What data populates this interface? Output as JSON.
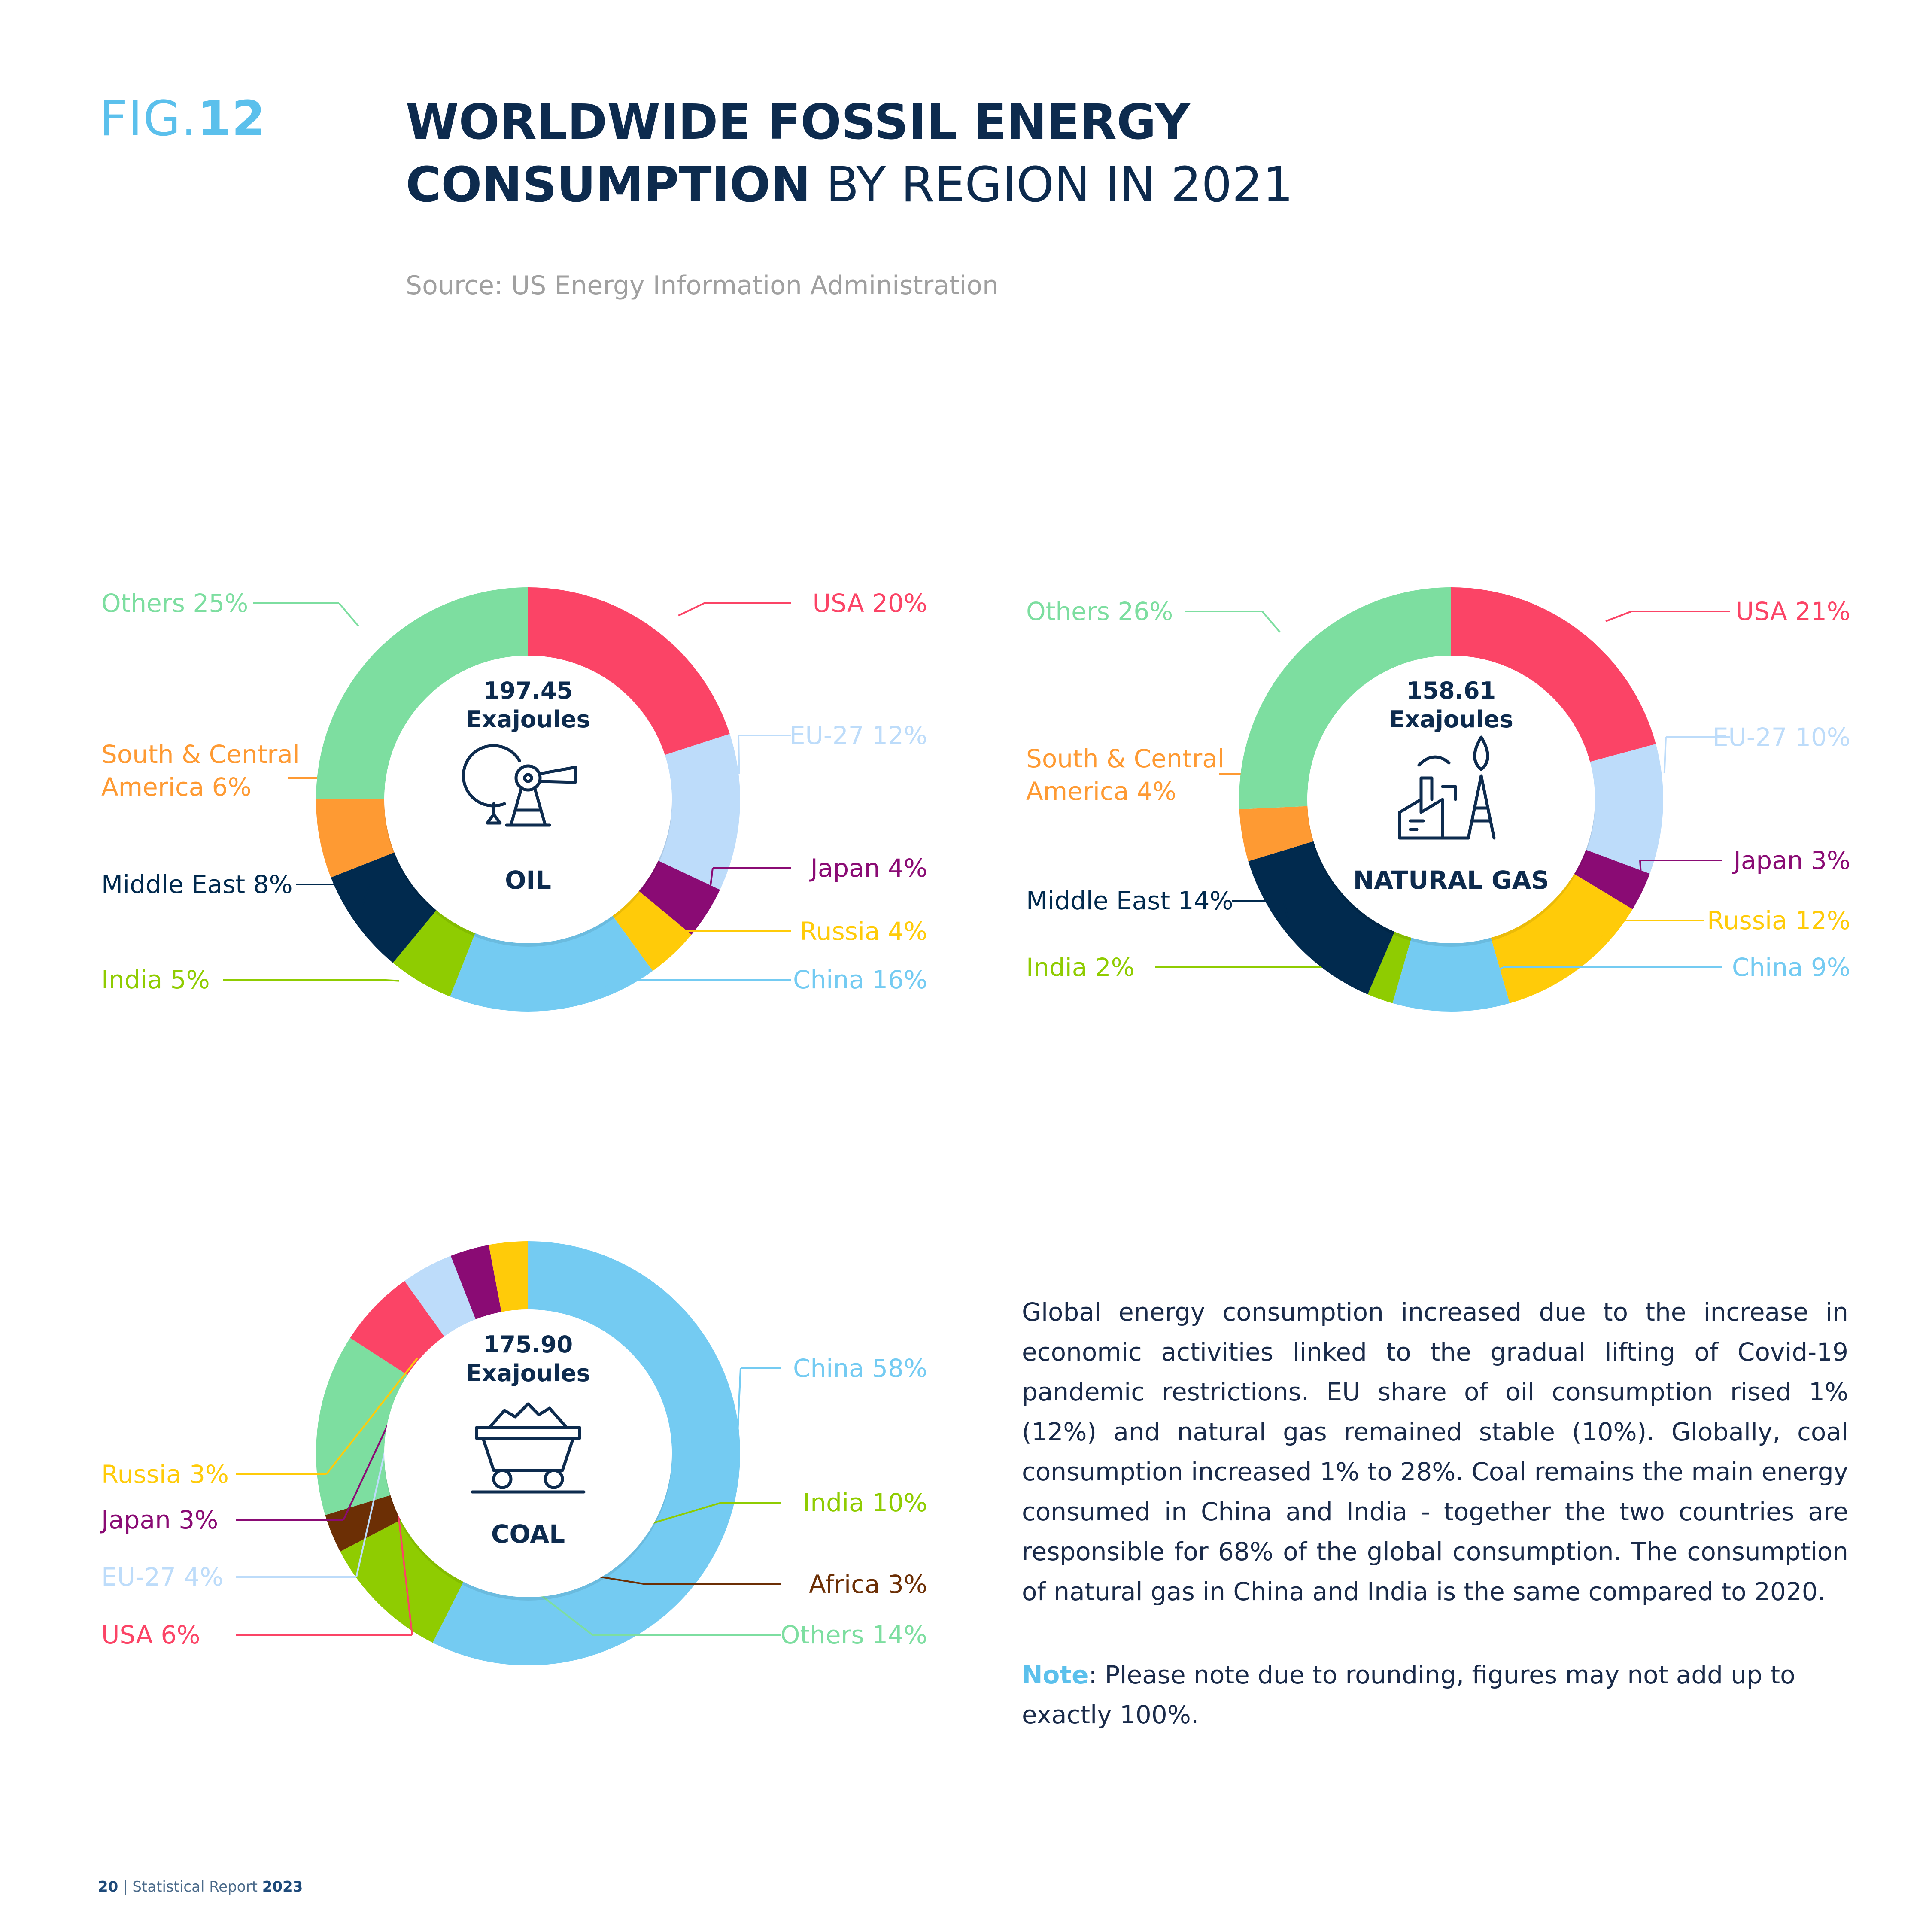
{
  "header": {
    "fig_prefix": "FIG.",
    "fig_number": "12",
    "title_bold_line1": "WORLDWIDE FOSSIL ENERGY",
    "title_bold_line2": "CONSUMPTION",
    "title_light": " BY REGION IN 2021",
    "source": "Source: US Energy Information Administration"
  },
  "colors": {
    "USA": "#fb4466",
    "EU-27": "#bddcfa",
    "Japan": "#8a0b74",
    "Russia": "#ffcb09",
    "China": "#74cbf2",
    "India": "#8fcc01",
    "Middle East": "#012a4e",
    "South & Central America": "#fe9a33",
    "Others": "#7ddea0",
    "Africa": "#6c2f05",
    "text_dark": "#0d2b4e",
    "accent": "#5bc0ec"
  },
  "chart_data": [
    {
      "type": "pie",
      "id": "oil",
      "total_value": "197.45",
      "total_unit": "Exajoules",
      "center_label": "OIL",
      "icon": "oil-pump-icon",
      "segments": [
        {
          "label": "USA",
          "value": 20,
          "text": "USA 20%"
        },
        {
          "label": "EU-27",
          "value": 12,
          "text": "EU-27 12%"
        },
        {
          "label": "Japan",
          "value": 4,
          "text": "Japan 4%"
        },
        {
          "label": "Russia",
          "value": 4,
          "text": "Russia 4%"
        },
        {
          "label": "China",
          "value": 16,
          "text": "China 16%"
        },
        {
          "label": "India",
          "value": 5,
          "text": "India 5%"
        },
        {
          "label": "Middle East",
          "value": 8,
          "text": "Middle East 8%"
        },
        {
          "label": "South & Central America",
          "value": 6,
          "text": "South & Central\nAmerica 6%"
        },
        {
          "label": "Others",
          "value": 25,
          "text": "Others 25%"
        }
      ]
    },
    {
      "type": "pie",
      "id": "natural-gas",
      "total_value": "158.61",
      "total_unit": "Exajoules",
      "center_label": "NATURAL GAS",
      "icon": "gas-factory-icon",
      "segments": [
        {
          "label": "USA",
          "value": 21,
          "text": "USA 21%"
        },
        {
          "label": "EU-27",
          "value": 10,
          "text": "EU-27 10%"
        },
        {
          "label": "Japan",
          "value": 3,
          "text": "Japan 3%"
        },
        {
          "label": "Russia",
          "value": 12,
          "text": "Russia 12%"
        },
        {
          "label": "China",
          "value": 9,
          "text": "China 9%"
        },
        {
          "label": "India",
          "value": 2,
          "text": "India 2%"
        },
        {
          "label": "Middle East",
          "value": 14,
          "text": "Middle East 14%"
        },
        {
          "label": "South & Central America",
          "value": 4,
          "text": "South & Central\nAmerica 4%"
        },
        {
          "label": "Others",
          "value": 26,
          "text": "Others 26%"
        }
      ]
    },
    {
      "type": "pie",
      "id": "coal",
      "total_value": "175.90",
      "total_unit": "Exajoules",
      "center_label": "COAL",
      "icon": "coal-cart-icon",
      "segments": [
        {
          "label": "China",
          "value": 58,
          "text": "China 58%"
        },
        {
          "label": "India",
          "value": 10,
          "text": "India 10%"
        },
        {
          "label": "Africa",
          "value": 3,
          "text": "Africa 3%"
        },
        {
          "label": "Others",
          "value": 14,
          "text": "Others 14%"
        },
        {
          "label": "USA",
          "value": 6,
          "text": "USA 6%"
        },
        {
          "label": "EU-27",
          "value": 4,
          "text": "EU-27 4%"
        },
        {
          "label": "Japan",
          "value": 3,
          "text": "Japan 3%"
        },
        {
          "label": "Russia",
          "value": 3,
          "text": "Russia 3%"
        }
      ]
    }
  ],
  "description": "Global energy consumption increased due to the increase in economic activities linked to the gradual lifting of Covid-19 pandemic restrictions. EU share of oil consumption rised 1% (12%) and natural gas remained stable (10%). Globally, coal consumption increased 1%  to 28%. Coal remains the main energy consumed in China and India - together the two countries are responsible for 68% of the global consumption. The consumption of natural gas in China and India is the same compared to 2020.",
  "note": {
    "label": "Note",
    "text": ": Please note due to rounding, figures may not add up to exactly 100%."
  },
  "footer": {
    "page": "20",
    "separator": " | ",
    "report": "Statistical Report ",
    "year": "2023"
  }
}
